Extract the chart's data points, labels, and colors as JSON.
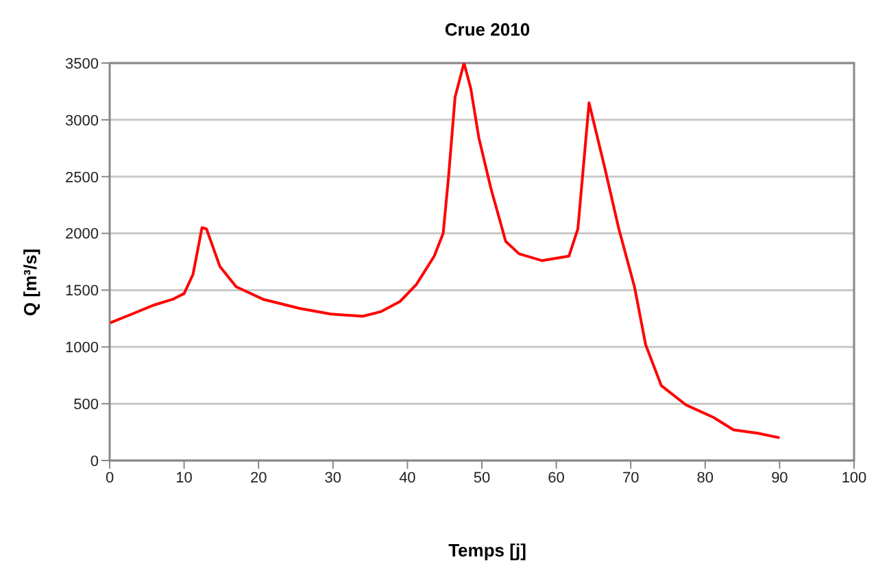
{
  "chart_data": {
    "type": "line",
    "title": "Crue 2010",
    "xlabel": "Temps [j]",
    "ylabel": "Q [m³/s]",
    "xlim": [
      0,
      100
    ],
    "xticks": [
      0,
      10,
      20,
      30,
      40,
      50,
      60,
      70,
      80,
      90,
      100
    ],
    "ylim": [
      0,
      3500
    ],
    "yticks": [
      0,
      500,
      1000,
      1500,
      2000,
      2500,
      3000,
      3500
    ],
    "grid": "y",
    "marker": "none",
    "line_style": "solid",
    "series": [
      {
        "color": "#ff0000",
        "x": [
          0,
          3,
          6,
          8.5,
          10,
          11.2,
          12.4,
          13,
          14.8,
          17,
          20.6,
          25.5,
          29.7,
          34,
          36.4,
          39,
          41.2,
          43.6,
          44.8,
          45.5,
          46.4,
          47.6,
          48.5,
          49.6,
          51.2,
          53.2,
          55,
          58.1,
          61.7,
          62.9,
          64.4,
          66.5,
          68.4,
          70.5,
          72,
          74.1,
          77.4,
          81.1,
          83.8,
          87.1,
          90
        ],
        "values": [
          1210,
          1290,
          1370,
          1420,
          1470,
          1640,
          2050,
          2040,
          1710,
          1530,
          1420,
          1340,
          1290,
          1270,
          1310,
          1400,
          1550,
          1800,
          2000,
          2480,
          3200,
          3500,
          3280,
          2840,
          2400,
          1930,
          1820,
          1760,
          1800,
          2040,
          3150,
          2580,
          2040,
          1530,
          1020,
          660,
          490,
          380,
          270,
          240,
          200
        ]
      }
    ]
  }
}
